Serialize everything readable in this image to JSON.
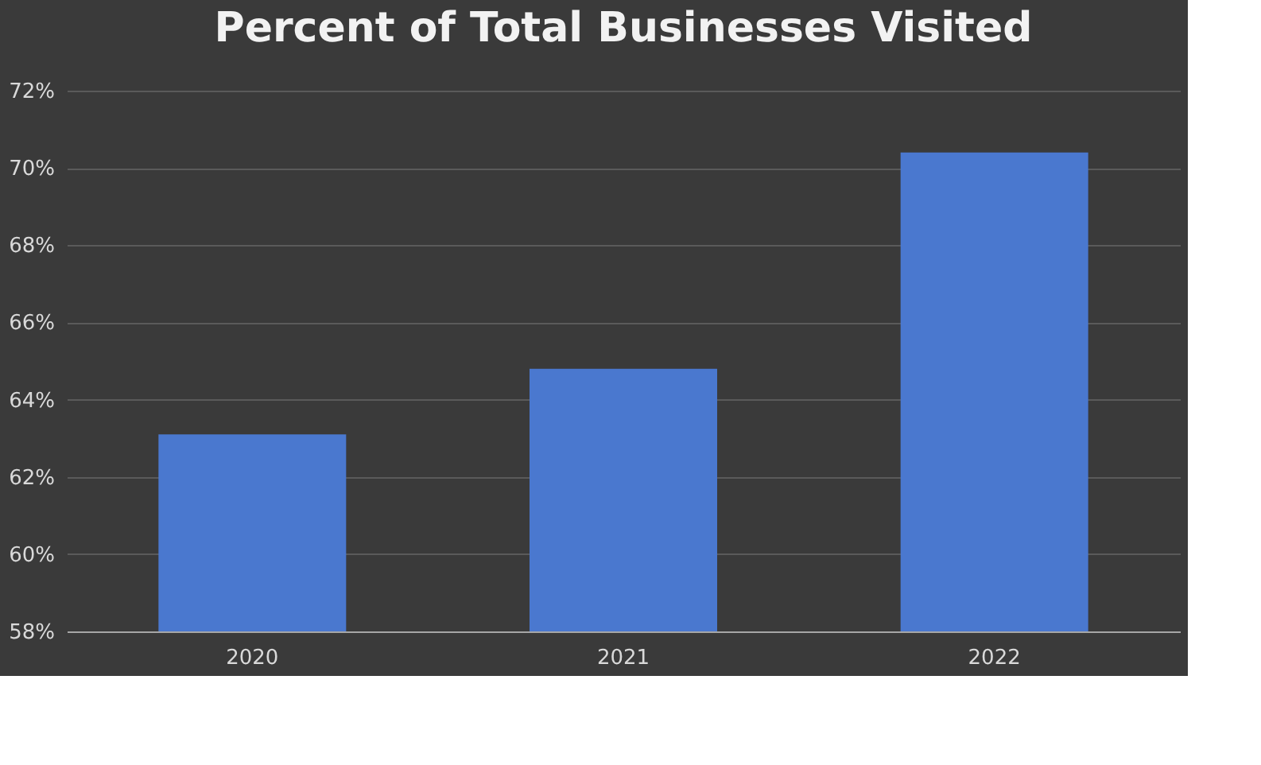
{
  "chart_data": {
    "type": "bar",
    "title": "Percent of Total Businesses Visited",
    "categories": [
      "2020",
      "2021",
      "2022"
    ],
    "values": [
      63.1,
      64.8,
      70.4
    ],
    "color": "#4a78cf",
    "ylim": [
      58,
      72
    ],
    "yticks": [
      {
        "value": 58,
        "label": "58%"
      },
      {
        "value": 60,
        "label": "60%"
      },
      {
        "value": 62,
        "label": "62%"
      },
      {
        "value": 64,
        "label": "64%"
      },
      {
        "value": 66,
        "label": "66%"
      },
      {
        "value": 68,
        "label": "68%"
      },
      {
        "value": 70,
        "label": "70%"
      },
      {
        "value": 72,
        "label": "72%"
      }
    ],
    "grid": "y"
  }
}
